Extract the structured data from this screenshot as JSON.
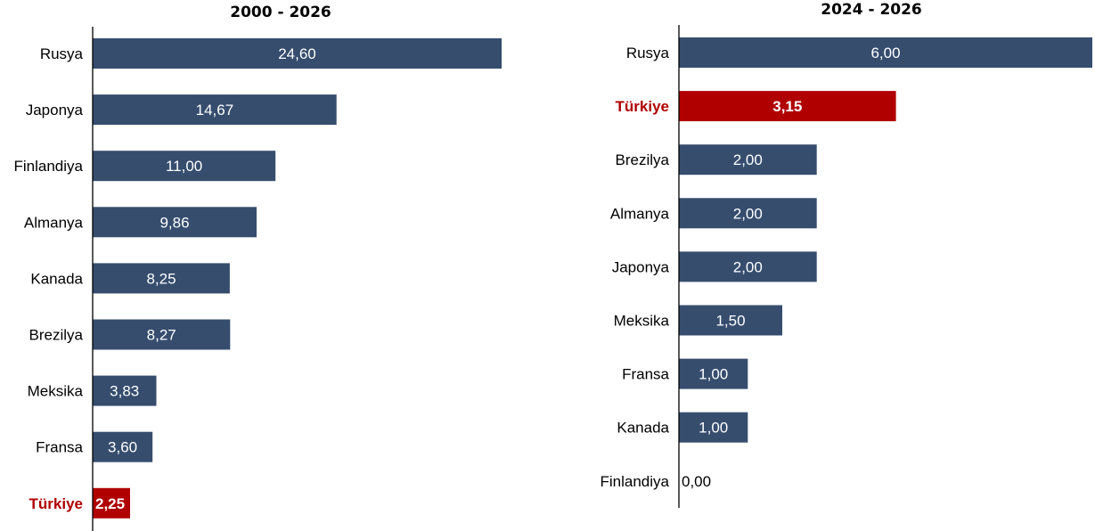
{
  "colors": {
    "bar": "#364d6e",
    "highlight": "#b00000",
    "axis": "#000000"
  },
  "chart_data": [
    {
      "type": "bar",
      "orientation": "horizontal",
      "title": "2000 - 2026",
      "highlight": "Türkiye",
      "categories": [
        "Rusya",
        "Japonya",
        "Finlandiya",
        "Almanya",
        "Kanada",
        "Brezilya",
        "Meksika",
        "Fransa",
        "Türkiye"
      ],
      "values": [
        24.6,
        14.67,
        11.0,
        9.86,
        8.25,
        8.27,
        3.83,
        3.6,
        2.25
      ],
      "labels": [
        "24,60",
        "14,67",
        "11,00",
        "9,86",
        "8,25",
        "8,27",
        "3,83",
        "3,60",
        "2,25"
      ],
      "xlim": [
        0,
        24.6
      ],
      "grid": false,
      "legend": "none"
    },
    {
      "type": "bar",
      "orientation": "horizontal",
      "title": "2024 - 2026",
      "highlight": "Türkiye",
      "categories": [
        "Rusya",
        "Türkiye",
        "Brezilya",
        "Almanya",
        "Japonya",
        "Meksika",
        "Fransa",
        "Kanada",
        "Finlandiya"
      ],
      "values": [
        6.0,
        3.15,
        2.0,
        2.0,
        2.0,
        1.5,
        1.0,
        1.0,
        0.0
      ],
      "labels": [
        "6,00",
        "3,15",
        "2,00",
        "2,00",
        "2,00",
        "1,50",
        "1,00",
        "1,00",
        "0,00"
      ],
      "xlim": [
        0,
        6.0
      ],
      "grid": false,
      "legend": "none"
    }
  ]
}
